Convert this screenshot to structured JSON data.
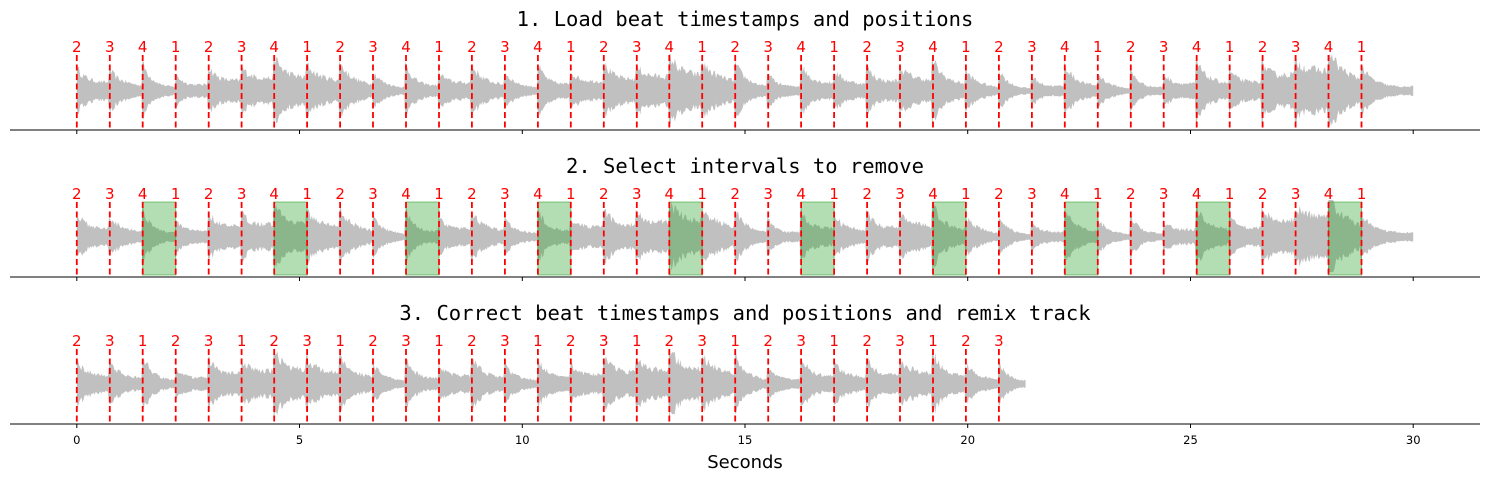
{
  "colors": {
    "waveform": "#c0c0c0",
    "beat_line": "#ff0000",
    "beat_label": "#ff0000",
    "removed_interval": "#2ca02c",
    "axis": "#000000"
  },
  "chart_data": [
    {
      "type": "area",
      "title": "1. Load beat timestamps and positions",
      "xlim": [
        -1.5,
        31.5
      ],
      "waveform_extent": [
        0,
        30
      ],
      "beats": {
        "times": [
          0.0,
          0.74,
          1.48,
          2.22,
          2.96,
          3.7,
          4.43,
          5.17,
          5.91,
          6.65,
          7.39,
          8.13,
          8.87,
          9.61,
          10.35,
          11.09,
          11.83,
          12.57,
          13.3,
          14.04,
          14.78,
          15.52,
          16.26,
          17.0,
          17.74,
          18.48,
          19.22,
          19.96,
          20.7,
          21.44,
          22.18,
          22.92,
          23.66,
          24.4,
          25.14,
          25.88,
          26.62,
          27.36,
          28.1,
          28.84
        ],
        "positions": [
          "2",
          "3",
          "4",
          "1",
          "2",
          "3",
          "4",
          "1",
          "2",
          "3",
          "4",
          "1",
          "2",
          "3",
          "4",
          "1",
          "2",
          "3",
          "4",
          "1",
          "2",
          "3",
          "4",
          "1",
          "2",
          "3",
          "4",
          "1",
          "2",
          "3",
          "4",
          "1",
          "2",
          "3",
          "4",
          "1",
          "2",
          "3",
          "4",
          "1"
        ]
      },
      "removed_intervals": [],
      "show_tick_labels": false
    },
    {
      "type": "area",
      "title": "2. Select intervals to remove",
      "xlim": [
        -1.5,
        31.5
      ],
      "waveform_extent": [
        0,
        30
      ],
      "beats": {
        "times": [
          0.0,
          0.74,
          1.48,
          2.22,
          2.96,
          3.7,
          4.43,
          5.17,
          5.91,
          6.65,
          7.39,
          8.13,
          8.87,
          9.61,
          10.35,
          11.09,
          11.83,
          12.57,
          13.3,
          14.04,
          14.78,
          15.52,
          16.26,
          17.0,
          17.74,
          18.48,
          19.22,
          19.96,
          20.7,
          21.44,
          22.18,
          22.92,
          23.66,
          24.4,
          25.14,
          25.88,
          26.62,
          27.36,
          28.1,
          28.84
        ],
        "positions": [
          "2",
          "3",
          "4",
          "1",
          "2",
          "3",
          "4",
          "1",
          "2",
          "3",
          "4",
          "1",
          "2",
          "3",
          "4",
          "1",
          "2",
          "3",
          "4",
          "1",
          "2",
          "3",
          "4",
          "1",
          "2",
          "3",
          "4",
          "1",
          "2",
          "3",
          "4",
          "1",
          "2",
          "3",
          "4",
          "1",
          "2",
          "3",
          "4",
          "1"
        ]
      },
      "removed_intervals": [
        [
          1.48,
          2.22
        ],
        [
          4.43,
          5.17
        ],
        [
          7.39,
          8.13
        ],
        [
          10.35,
          11.09
        ],
        [
          13.3,
          14.04
        ],
        [
          16.26,
          17.0
        ],
        [
          19.22,
          19.96
        ],
        [
          22.18,
          22.92
        ],
        [
          25.14,
          25.88
        ],
        [
          28.1,
          28.84
        ]
      ],
      "show_tick_labels": false
    },
    {
      "type": "area",
      "title": "3. Correct beat timestamps and positions and remix track",
      "xlabel": "Seconds",
      "xlim": [
        -1.5,
        31.5
      ],
      "xticks": [
        0,
        5,
        10,
        15,
        20,
        25,
        30
      ],
      "waveform_extent": [
        0,
        21.3
      ],
      "beats": {
        "times": [
          0.0,
          0.74,
          1.48,
          2.22,
          2.96,
          3.7,
          4.43,
          5.17,
          5.91,
          6.65,
          7.39,
          8.13,
          8.87,
          9.61,
          10.35,
          11.09,
          11.83,
          12.57,
          13.3,
          14.04,
          14.78,
          15.52,
          16.26,
          17.0,
          17.74,
          18.48,
          19.22,
          19.96,
          20.7
        ],
        "positions": [
          "2",
          "3",
          "1",
          "2",
          "3",
          "1",
          "2",
          "3",
          "1",
          "2",
          "3",
          "1",
          "2",
          "3",
          "1",
          "2",
          "3",
          "1",
          "2",
          "3",
          "1",
          "2",
          "3",
          "1",
          "2",
          "3",
          "1",
          "2",
          "3"
        ]
      },
      "removed_intervals": [],
      "show_tick_labels": true
    }
  ]
}
